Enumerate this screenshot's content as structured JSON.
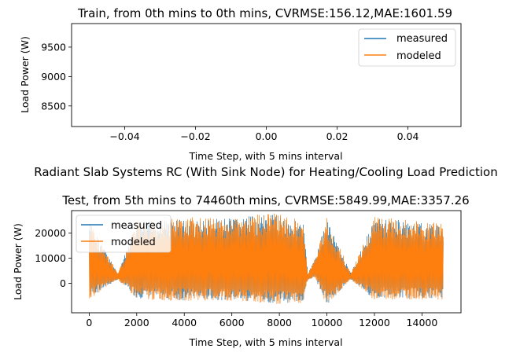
{
  "figure_title": "Radiant Slab Systems RC (With Sink Node) for Heating/Cooling Load Prediction",
  "colors": {
    "measured": "#1f77b4",
    "modeled": "#ff7f0e"
  },
  "chart_data": [
    {
      "type": "line",
      "title": "Train, from 0th mins to 0th mins, CVRMSE:156.12,MAE:1601.59",
      "xlabel": "Time Step, with 5 mins interval",
      "ylabel": "Load Power (W)",
      "xlim": [
        -0.055,
        0.055
      ],
      "ylim": [
        8150,
        9900
      ],
      "xticks": [
        -0.04,
        -0.02,
        0.0,
        0.02,
        0.04
      ],
      "xtick_labels": [
        "−0.04",
        "−0.02",
        "0.00",
        "0.02",
        "0.04"
      ],
      "yticks": [
        8500,
        9000,
        9500
      ],
      "ytick_labels": [
        "8500",
        "9000",
        "9500"
      ],
      "legend": "upper right",
      "series": [
        {
          "name": "measured",
          "x": [],
          "y": []
        },
        {
          "name": "modeled",
          "x": [],
          "y": []
        }
      ]
    },
    {
      "type": "line",
      "title": "Test, from 5th mins to 74460th mins, CVRMSE:5849.99,MAE:3357.26",
      "xlabel": "Time Step, with 5 mins interval",
      "ylabel": "Load Power (W)",
      "xlim": [
        -740,
        15640
      ],
      "ylim": [
        -11800,
        29000
      ],
      "xticks": [
        0,
        2000,
        4000,
        6000,
        8000,
        10000,
        12000,
        14000
      ],
      "xtick_labels": [
        "0",
        "2000",
        "4000",
        "6000",
        "8000",
        "10000",
        "12000",
        "14000"
      ],
      "yticks": [
        0,
        10000,
        20000
      ],
      "ytick_labels": [
        "0",
        "10000",
        "20000"
      ],
      "legend": "upper left",
      "x_range": [
        0,
        14892
      ],
      "series": [
        {
          "name": "measured",
          "band_x": [
            0,
            1200,
            2000,
            3000,
            4000,
            5000,
            6000,
            7000,
            8000,
            9000,
            9200,
            9500,
            10000,
            11000,
            12000,
            13000,
            14000,
            14892
          ],
          "band_min": [
            -6000,
            1500,
            -6000,
            -6500,
            -7000,
            -6500,
            -7000,
            -7500,
            -8000,
            -7500,
            1500,
            2000,
            -8500,
            1500,
            -6500,
            -6000,
            -6000,
            -6000
          ],
          "band_max": [
            25000,
            4000,
            24000,
            25000,
            26000,
            25500,
            26000,
            27000,
            27500,
            24000,
            4000,
            10000,
            26000,
            4000,
            26000,
            25500,
            24000,
            23500
          ]
        },
        {
          "name": "modeled",
          "band_x": [
            0,
            1200,
            2000,
            3000,
            4000,
            5000,
            6000,
            7000,
            8000,
            9000,
            9200,
            9500,
            10000,
            11000,
            12000,
            13000,
            14000,
            14892
          ],
          "band_min": [
            -6500,
            1500,
            -6500,
            -7000,
            -7000,
            -7000,
            -7500,
            -8000,
            -8500,
            -8000,
            1500,
            2000,
            -9000,
            1500,
            -7000,
            -6500,
            -6500,
            -6500
          ],
          "band_max": [
            25000,
            4000,
            24500,
            25500,
            26500,
            26000,
            26500,
            27500,
            28000,
            24500,
            4000,
            10000,
            26500,
            4000,
            26500,
            26000,
            24500,
            24000
          ]
        }
      ]
    }
  ]
}
